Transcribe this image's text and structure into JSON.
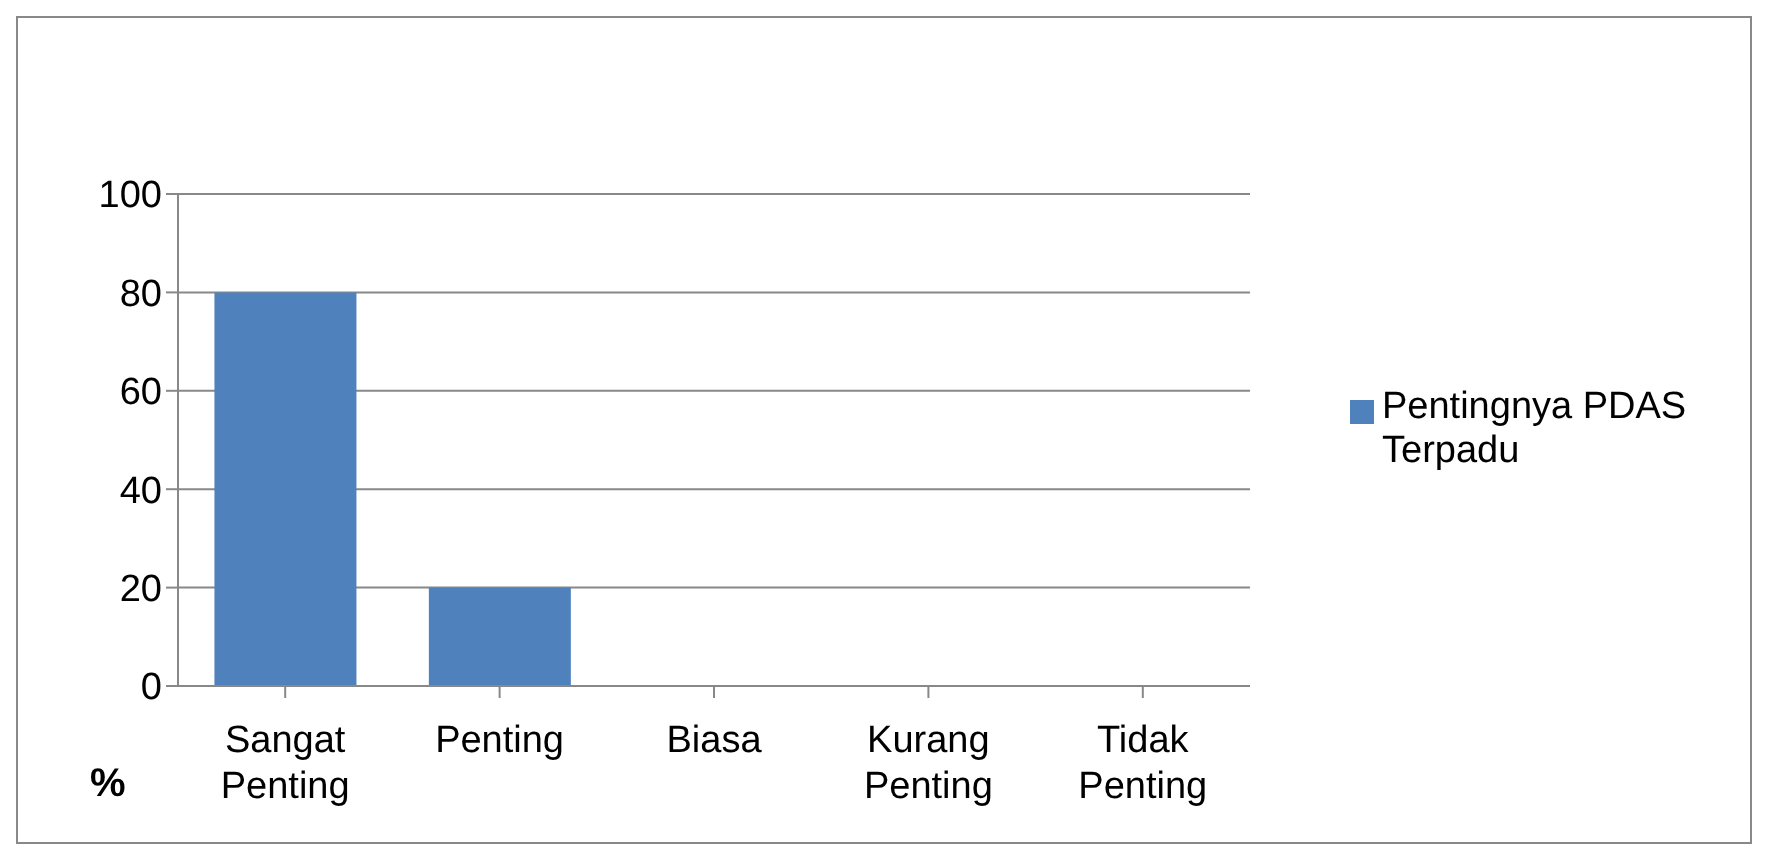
{
  "chart_data": {
    "type": "bar",
    "categories": [
      "Sangat Penting",
      "Penting",
      "Biasa",
      "Kurang Penting",
      "Tidak Penting"
    ],
    "series": [
      {
        "name": "Pentingnya PDAS Terpadu",
        "color": "#4f81bd",
        "values": [
          80,
          20,
          0,
          0,
          0
        ]
      }
    ],
    "ylabel": "%",
    "ylim": [
      0,
      100
    ],
    "yticks": [
      0,
      20,
      40,
      60,
      80,
      100
    ],
    "grid": "y",
    "legend": "right"
  }
}
